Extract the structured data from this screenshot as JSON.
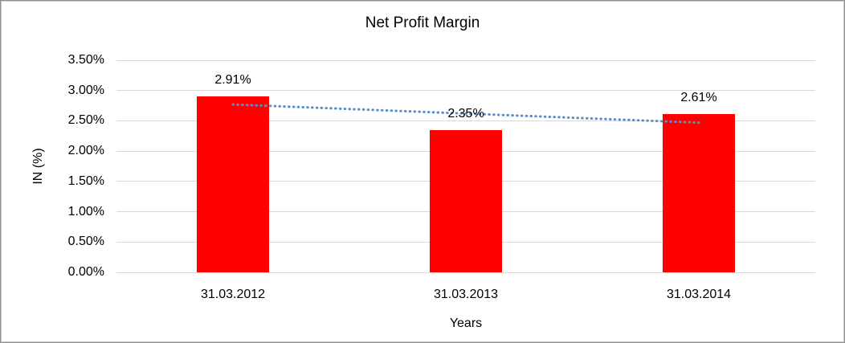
{
  "chart_data": {
    "type": "bar",
    "title": "Net Profit Margin",
    "xlabel": "Years",
    "ylabel": "IN (%)",
    "categories": [
      "31.03.2012",
      "31.03.2013",
      "31.03.2014"
    ],
    "values": [
      2.91,
      2.35,
      2.61
    ],
    "data_labels": [
      "2.91%",
      "2.35%",
      "2.61%"
    ],
    "ylim": [
      0,
      3.5
    ],
    "ytick_step": 0.5,
    "ytick_labels": [
      "0.00%",
      "0.50%",
      "1.00%",
      "1.50%",
      "2.00%",
      "2.50%",
      "3.00%",
      "3.50%"
    ],
    "grid": true,
    "legend": "none",
    "colors": {
      "bar": "#ff0000",
      "gridline": "#d9d9d9",
      "text": "#000000",
      "trendline": "#5b8fc9",
      "frame_border": "#c9c9c9"
    },
    "trendline": {
      "kind": "linear",
      "style": "dotted",
      "start_value": 2.77,
      "end_value": 2.47
    }
  }
}
